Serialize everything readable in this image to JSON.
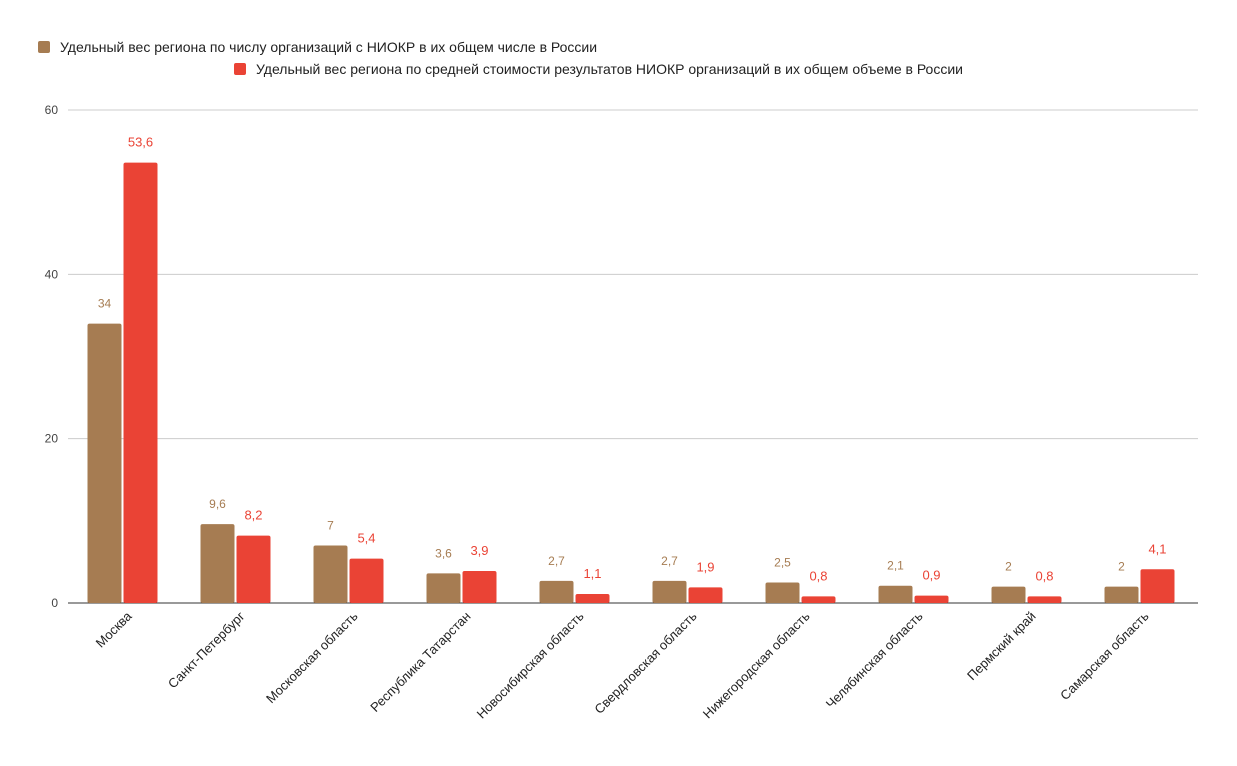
{
  "chart_data": {
    "type": "bar",
    "categories": [
      "Москва",
      "Санкт-Петербург",
      "Московская область",
      "Республика Татарстан",
      "Новосибирская область",
      "Свердловская область",
      "Нижегородская область",
      "Челябинская область",
      "Пермский край",
      "Самарская область"
    ],
    "series": [
      {
        "name": "Удельный вес региона по числу организаций с НИОКР в их общем числе в России",
        "color": "#a67c52",
        "values": [
          34,
          9.6,
          7,
          3.6,
          2.7,
          2.7,
          2.5,
          2.1,
          2,
          2
        ],
        "labels": [
          "34",
          "9,6",
          "7",
          "3,6",
          "2,7",
          "2,7",
          "2,5",
          "2,1",
          "2",
          "2"
        ]
      },
      {
        "name": "Удельный вес региона по средней стоимости результатов НИОКР организаций в их общем объеме в России",
        "color": "#ea4335",
        "values": [
          53.6,
          8.2,
          5.4,
          3.9,
          1.1,
          1.9,
          0.8,
          0.9,
          0.8,
          4.1
        ],
        "labels": [
          "53,6",
          "8,2",
          "5,4",
          "3,9",
          "1,1",
          "1,9",
          "0,8",
          "0,9",
          "0,8",
          "4,1"
        ]
      }
    ],
    "ylim": [
      0,
      60
    ],
    "yticks": [
      "0",
      "20",
      "40",
      "60"
    ],
    "grid": true,
    "legend_position": "top"
  }
}
